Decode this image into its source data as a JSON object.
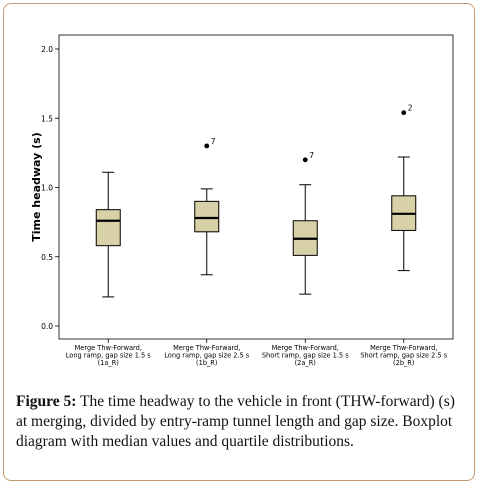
{
  "chart_data": {
    "type": "boxplot",
    "ylabel": "Time headway (s)",
    "ylim": [
      0.0,
      2.0
    ],
    "yticks": [
      "0.0",
      "0.5",
      "1.0",
      "1.5",
      "2.0"
    ],
    "categories": [
      [
        "Merge Thw-Forward,",
        "Long ramp, gap size 1.5 s",
        "(1a_R)"
      ],
      [
        "Merge Thw-Forward,",
        "Long ramp, gap size 2.5 s",
        "(1b_R)"
      ],
      [
        "Merge Thw-Forward,",
        "Short ramp, gap size 1.5 s",
        "(2a_R)"
      ],
      [
        "Merge Thw-Forward,",
        "Short ramp, gap size 2.5 s",
        "(2b_R)"
      ]
    ],
    "boxes": [
      {
        "min": 0.21,
        "q1": 0.58,
        "median": 0.76,
        "q3": 0.84,
        "max": 1.11,
        "outliers": []
      },
      {
        "min": 0.37,
        "q1": 0.68,
        "median": 0.78,
        "q3": 0.9,
        "max": 0.99,
        "outliers": [
          {
            "value": 1.3,
            "label": "7"
          }
        ]
      },
      {
        "min": 0.23,
        "q1": 0.51,
        "median": 0.63,
        "q3": 0.76,
        "max": 1.02,
        "outliers": [
          {
            "value": 1.2,
            "label": "7"
          }
        ]
      },
      {
        "min": 0.4,
        "q1": 0.69,
        "median": 0.81,
        "q3": 0.94,
        "max": 1.22,
        "outliers": [
          {
            "value": 1.54,
            "label": "2"
          }
        ]
      }
    ],
    "colors": {
      "box_fill": "#d8d0a6",
      "stroke": "#000000",
      "border": "#c49a6c"
    }
  },
  "caption": {
    "label": "Figure 5:",
    "text": "The time headway to the vehicle in front (THW-forward) (s) at merging, divided by entry-ramp tunnel length and gap size. Boxplot diagram with median values and quartile distributions."
  }
}
